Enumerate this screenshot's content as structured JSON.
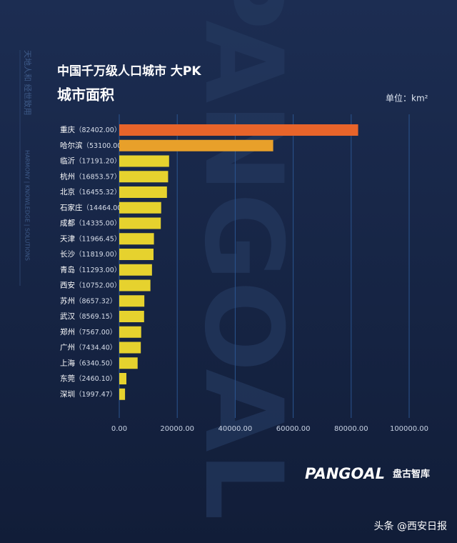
{
  "chart_data": {
    "type": "barh",
    "title": "中国千万级人口城市 大PK",
    "subtitle": "城市面积",
    "unit": "单位：km²",
    "categories": [
      "重庆",
      "哈尔滨",
      "临沂",
      "杭州",
      "北京",
      "石家庄",
      "成都",
      "天津",
      "长沙",
      "青岛",
      "西安",
      "苏州",
      "武汉",
      "郑州",
      "广州",
      "上海",
      "东莞",
      "深圳"
    ],
    "values": [
      82402.0,
      53100.0,
      17191.2,
      16853.57,
      16455.32,
      14464.0,
      14335.0,
      11966.45,
      11819.0,
      11293.0,
      10752.0,
      8657.32,
      8569.15,
      7567.0,
      7434.4,
      6340.5,
      2460.1,
      1997.47
    ],
    "value_labels": [
      "（82402.00）",
      "（53100.00）",
      "（17191.20）",
      "（16853.57）",
      "（16455.32）",
      "（14464.00）",
      "（14335.00）",
      "（11966.45）",
      "（11819.00）",
      "（11293.00）",
      "（10752.00）",
      "（8657.32）",
      "（8569.15）",
      "（7567.00）",
      "（7434.40）",
      "（6340.50）",
      "（2460.10）",
      "（1997.47）"
    ],
    "colors": [
      "#e8642a",
      "#e8a02a",
      "#e6d22e",
      "#e6d22e",
      "#e6d22e",
      "#e6d22e",
      "#e6d22e",
      "#e6d22e",
      "#e6d22e",
      "#e6d22e",
      "#e6d22e",
      "#e6d22e",
      "#e6d22e",
      "#e6d22e",
      "#e6d22e",
      "#e6d22e",
      "#e6d22e",
      "#e6d22e"
    ],
    "xlim": [
      0,
      100000
    ],
    "xticks": [
      {
        "value": 0,
        "label": "0.00"
      },
      {
        "value": 20000,
        "label": "20000.00"
      },
      {
        "value": 40000,
        "label": "40000.00"
      },
      {
        "value": 60000,
        "label": "60000.00"
      },
      {
        "value": 80000,
        "label": "80000.00"
      },
      {
        "value": 100000,
        "label": "100000.00"
      }
    ],
    "grid": true
  },
  "decor": {
    "side_cn": "天地人和 经世致用",
    "side_en": "HARMONY | KNOWLEDGE | SOLUTIONS",
    "watermark": "PANGOAL",
    "logo": "PANGOAL",
    "brand": "盘古智库",
    "footer": "头条 @西安日报"
  }
}
